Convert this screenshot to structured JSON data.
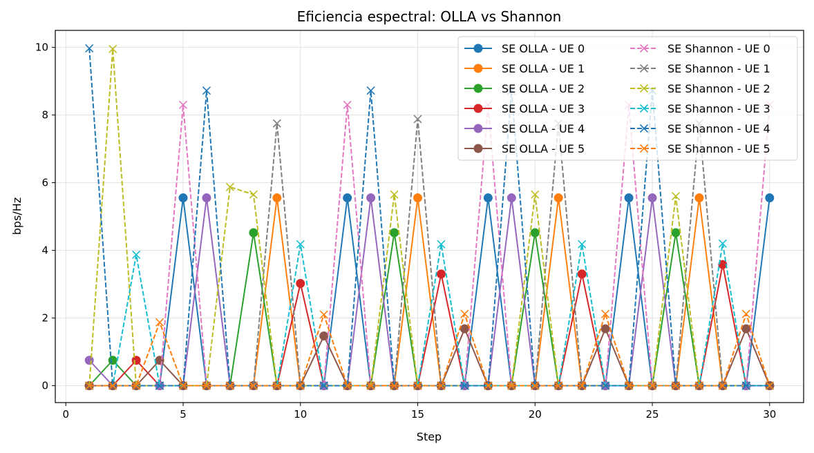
{
  "chart_data": {
    "type": "line",
    "title": "Eficiencia espectral: OLLA vs Shannon",
    "xlabel": "Step",
    "ylabel": "bps/Hz",
    "xlim": [
      -0.45,
      31.45
    ],
    "ylim": [
      -0.5,
      10.5
    ],
    "x_ticks": [
      0,
      5,
      10,
      15,
      20,
      25,
      30
    ],
    "y_ticks": [
      0,
      2,
      4,
      6,
      8,
      10
    ],
    "x_tick_labels": [
      "0",
      "5",
      "10",
      "15",
      "20",
      "25",
      "30"
    ],
    "y_tick_labels": [
      "0",
      "2",
      "4",
      "6",
      "8",
      "10"
    ],
    "grid": true,
    "legend_position": "top-right",
    "legend_columns": 2,
    "x": [
      1,
      2,
      3,
      4,
      5,
      6,
      7,
      8,
      9,
      10,
      11,
      12,
      13,
      14,
      15,
      16,
      17,
      18,
      19,
      20,
      21,
      22,
      23,
      24,
      25,
      26,
      27,
      28,
      29,
      30
    ],
    "series": [
      {
        "name": "SE OLLA - UE 0",
        "color": "#1f77b4",
        "style": "solid",
        "marker": "circle",
        "values": [
          0,
          0,
          0,
          0,
          5.55,
          0,
          0,
          0,
          0,
          0,
          0,
          5.55,
          0,
          0,
          0,
          0,
          0,
          5.55,
          0,
          0,
          0,
          0,
          0,
          5.55,
          0,
          0,
          0,
          0,
          0,
          5.55
        ]
      },
      {
        "name": "SE OLLA - UE 1",
        "color": "#ff7f0e",
        "style": "solid",
        "marker": "circle",
        "values": [
          0,
          0,
          0,
          0,
          0,
          0,
          0,
          0,
          5.55,
          0,
          0,
          0,
          0,
          0,
          5.55,
          0,
          0,
          0,
          0,
          0,
          5.55,
          0,
          0,
          0,
          0,
          0,
          5.55,
          0,
          0,
          0
        ]
      },
      {
        "name": "SE OLLA - UE 2",
        "color": "#2ca02c",
        "style": "solid",
        "marker": "circle",
        "values": [
          0,
          0.75,
          0,
          0,
          0,
          0,
          0,
          4.52,
          0,
          0,
          0,
          0,
          0,
          4.52,
          0,
          0,
          0,
          0,
          0,
          4.52,
          0,
          0,
          0,
          0,
          0,
          4.52,
          0,
          0,
          0,
          0
        ]
      },
      {
        "name": "SE OLLA - UE 3",
        "color": "#d62728",
        "style": "solid",
        "marker": "circle",
        "values": [
          0,
          0,
          0.75,
          0,
          0,
          0,
          0,
          0,
          0,
          3.02,
          0,
          0,
          0,
          0,
          0,
          3.3,
          0,
          0,
          0,
          0,
          0,
          3.3,
          0,
          0,
          0,
          0,
          0,
          3.58,
          0,
          0
        ]
      },
      {
        "name": "SE OLLA - UE 4",
        "color": "#9467bd",
        "style": "solid",
        "marker": "circle",
        "values": [
          0.75,
          0,
          0,
          0,
          0,
          5.55,
          0,
          0,
          0,
          0,
          0,
          0,
          5.55,
          0,
          0,
          0,
          0,
          0,
          5.55,
          0,
          0,
          0,
          0,
          0,
          5.55,
          0,
          0,
          0,
          0,
          0
        ]
      },
      {
        "name": "SE OLLA - UE 5",
        "color": "#8c564b",
        "style": "solid",
        "marker": "circle",
        "values": [
          0,
          0,
          0,
          0.75,
          0,
          0,
          0,
          0,
          0,
          0,
          1.47,
          0,
          0,
          0,
          0,
          0,
          1.68,
          0,
          0,
          0,
          0,
          0,
          1.68,
          0,
          0,
          0,
          0,
          0,
          1.68,
          0
        ]
      },
      {
        "name": "SE Shannon - UE 0",
        "color": "#e377c2",
        "style": "dashed",
        "marker": "x",
        "values": [
          0,
          0,
          0,
          0,
          8.3,
          0,
          0,
          0,
          0,
          0,
          0,
          8.3,
          0,
          0,
          0,
          0,
          0,
          8.3,
          0,
          0,
          0,
          0,
          0,
          8.3,
          0,
          0,
          0,
          0,
          0,
          8.3
        ]
      },
      {
        "name": "SE Shannon - UE 1",
        "color": "#7f7f7f",
        "style": "dashed",
        "marker": "x",
        "values": [
          0,
          0,
          0,
          0,
          0,
          0,
          0,
          0,
          7.75,
          0,
          0,
          0,
          0,
          0,
          7.88,
          0,
          0,
          0,
          0,
          0,
          7.75,
          0,
          0,
          0,
          0,
          0,
          7.75,
          0,
          0,
          0
        ]
      },
      {
        "name": "SE Shannon - UE 2",
        "color": "#bcbd22",
        "style": "dashed",
        "marker": "x",
        "values": [
          0,
          9.95,
          0,
          0,
          0,
          0,
          5.87,
          5.65,
          0,
          0,
          0,
          0,
          0,
          5.65,
          0,
          0,
          0,
          0,
          0,
          5.65,
          0,
          0,
          0,
          0,
          0,
          5.6,
          0,
          0,
          0,
          0
        ]
      },
      {
        "name": "SE Shannon - UE 3",
        "color": "#17becf",
        "style": "dashed",
        "marker": "x",
        "values": [
          0,
          0,
          3.87,
          0,
          0,
          0,
          0,
          0,
          0,
          4.18,
          0,
          0,
          0,
          0,
          0,
          4.18,
          0,
          0,
          0,
          0,
          0,
          4.18,
          0,
          0,
          0,
          0,
          0,
          4.2,
          0,
          0
        ]
      },
      {
        "name": "SE Shannon - UE 4",
        "color": "#1f77b4",
        "style": "dashed",
        "marker": "x",
        "values": [
          9.97,
          0,
          0,
          0,
          0,
          8.72,
          0,
          0,
          0,
          0,
          0,
          0,
          8.72,
          0,
          0,
          0,
          0,
          0,
          8.72,
          0,
          0,
          0,
          0,
          0,
          8.72,
          0,
          0,
          0,
          0,
          0
        ]
      },
      {
        "name": "SE Shannon - UE 5",
        "color": "#ff7f0e",
        "style": "dashed",
        "marker": "x",
        "values": [
          0,
          0,
          0,
          1.87,
          0,
          0,
          0,
          0,
          0,
          0,
          2.1,
          0,
          0,
          0,
          0,
          0,
          2.12,
          0,
          0,
          0,
          0,
          0,
          2.12,
          0,
          0,
          0,
          0,
          0,
          2.12,
          0
        ]
      }
    ]
  }
}
